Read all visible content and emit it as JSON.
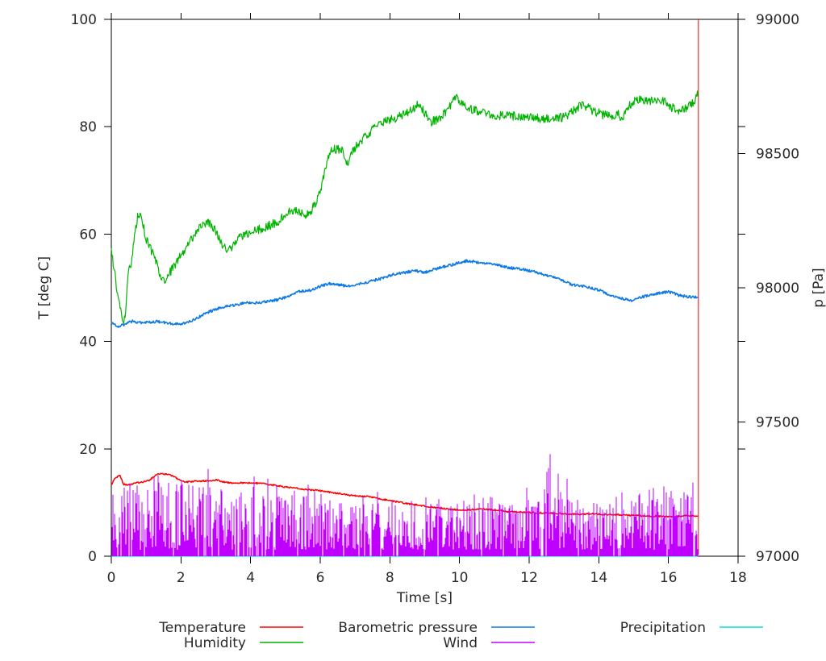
{
  "page": {
    "background": "#ffffff",
    "text_color": "#2a2a2a",
    "axis_color": "#000000"
  },
  "chart_data": {
    "type": "line",
    "title": "",
    "grid": false,
    "x_axis": {
      "label": "Time [s]",
      "min": 0,
      "max": 18,
      "tick_step": 2,
      "ticks": [
        0,
        2,
        4,
        6,
        8,
        10,
        12,
        14,
        16,
        18
      ]
    },
    "y_axis": {
      "label": "T [deg C]",
      "min": 0,
      "max": 100,
      "tick_step": 20,
      "ticks": [
        0,
        20,
        40,
        60,
        80,
        100
      ]
    },
    "y2_axis": {
      "label": "p [Pa]",
      "min": 97000,
      "max": 99000,
      "tick_step": 500,
      "ticks": [
        97000,
        97500,
        98000,
        98500,
        99000
      ]
    },
    "legend": {
      "position": "below",
      "entries": [
        {
          "label": "Temperature",
          "color": "#ff0000",
          "row": 0,
          "col": 0
        },
        {
          "label": "Humidity",
          "color": "#00b400",
          "row": 1,
          "col": 0
        },
        {
          "label": "Barometric pressure",
          "color": "#0e7ae4",
          "row": 0,
          "col": 1
        },
        {
          "label": "Wind",
          "color": "#bf00ff",
          "row": 1,
          "col": 1
        },
        {
          "label": "Precipitation",
          "color": "#00dde4",
          "row": 0,
          "col": 2
        }
      ]
    },
    "series": [
      {
        "name": "Precipitation",
        "axis": "y",
        "color": "#00dde4",
        "type": "line",
        "noise": 0,
        "width": 1.2,
        "points": [
          [
            0,
            0
          ],
          [
            16.86,
            0
          ]
        ]
      },
      {
        "name": "Temperature",
        "axis": "y",
        "color": "#ff0000",
        "type": "line",
        "noise": 0.14,
        "width": 1.5,
        "points": [
          [
            0,
            13.2
          ],
          [
            0.1,
            14.6
          ],
          [
            0.25,
            15.0
          ],
          [
            0.35,
            13.4
          ],
          [
            0.5,
            13.3
          ],
          [
            0.7,
            13.6
          ],
          [
            0.9,
            13.8
          ],
          [
            1.1,
            14.2
          ],
          [
            1.35,
            15.4
          ],
          [
            1.55,
            15.3
          ],
          [
            1.75,
            15.0
          ],
          [
            1.95,
            14.2
          ],
          [
            2.15,
            13.8
          ],
          [
            2.4,
            14.0
          ],
          [
            2.7,
            14.0
          ],
          [
            3.0,
            14.2
          ],
          [
            3.2,
            13.9
          ],
          [
            3.5,
            13.6
          ],
          [
            3.8,
            13.7
          ],
          [
            4.1,
            13.6
          ],
          [
            4.4,
            13.5
          ],
          [
            4.7,
            13.2
          ],
          [
            5.0,
            12.9
          ],
          [
            5.3,
            12.7
          ],
          [
            5.6,
            12.4
          ],
          [
            5.9,
            12.3
          ],
          [
            6.2,
            12.0
          ],
          [
            6.5,
            11.7
          ],
          [
            6.8,
            11.4
          ],
          [
            7.1,
            11.2
          ],
          [
            7.4,
            11.1
          ],
          [
            7.7,
            10.7
          ],
          [
            8.0,
            10.4
          ],
          [
            8.3,
            10.0
          ],
          [
            8.6,
            9.7
          ],
          [
            9.0,
            9.3
          ],
          [
            9.4,
            9.0
          ],
          [
            9.8,
            8.7
          ],
          [
            10.2,
            8.6
          ],
          [
            10.6,
            8.8
          ],
          [
            11.0,
            8.6
          ],
          [
            11.4,
            8.3
          ],
          [
            11.8,
            8.2
          ],
          [
            12.2,
            8.1
          ],
          [
            12.6,
            8.0
          ],
          [
            13.0,
            7.9
          ],
          [
            13.4,
            7.8
          ],
          [
            13.8,
            7.9
          ],
          [
            14.2,
            7.8
          ],
          [
            14.6,
            7.7
          ],
          [
            15.0,
            7.6
          ],
          [
            15.4,
            7.5
          ],
          [
            15.8,
            7.4
          ],
          [
            16.2,
            7.3
          ],
          [
            16.5,
            7.6
          ],
          [
            16.7,
            7.5
          ],
          [
            16.86,
            7.3
          ]
        ],
        "end_spike": {
          "t": 16.86,
          "from": 0.3,
          "to": 100
        }
      },
      {
        "name": "Humidity",
        "axis": "y",
        "color": "#00b400",
        "type": "line",
        "noise": 0.85,
        "width": 1.2,
        "points": [
          [
            0,
            57
          ],
          [
            0.08,
            53.5
          ],
          [
            0.2,
            48
          ],
          [
            0.3,
            44.5
          ],
          [
            0.38,
            44
          ],
          [
            0.5,
            53
          ],
          [
            0.58,
            55
          ],
          [
            0.68,
            60
          ],
          [
            0.78,
            64
          ],
          [
            0.9,
            62
          ],
          [
            1.0,
            59
          ],
          [
            1.15,
            57
          ],
          [
            1.3,
            54.5
          ],
          [
            1.45,
            51.5
          ],
          [
            1.55,
            51
          ],
          [
            1.7,
            53
          ],
          [
            1.85,
            54.5
          ],
          [
            2.0,
            56
          ],
          [
            2.2,
            58
          ],
          [
            2.4,
            60
          ],
          [
            2.6,
            62
          ],
          [
            2.8,
            62.2
          ],
          [
            3.0,
            60.5
          ],
          [
            3.2,
            58
          ],
          [
            3.35,
            57
          ],
          [
            3.5,
            58
          ],
          [
            3.7,
            59.5
          ],
          [
            3.9,
            60
          ],
          [
            4.1,
            60.5
          ],
          [
            4.3,
            61
          ],
          [
            4.5,
            61.5
          ],
          [
            4.7,
            62
          ],
          [
            4.9,
            63
          ],
          [
            5.1,
            64
          ],
          [
            5.25,
            64.5
          ],
          [
            5.4,
            64
          ],
          [
            5.55,
            63.5
          ],
          [
            5.7,
            64
          ],
          [
            5.85,
            65.5
          ],
          [
            6.0,
            68
          ],
          [
            6.15,
            72
          ],
          [
            6.3,
            75.5
          ],
          [
            6.5,
            76
          ],
          [
            6.65,
            75.5
          ],
          [
            6.75,
            72.8
          ],
          [
            6.9,
            75
          ],
          [
            7.1,
            77
          ],
          [
            7.35,
            78.5
          ],
          [
            7.6,
            80
          ],
          [
            7.85,
            81
          ],
          [
            8.1,
            81.5
          ],
          [
            8.35,
            82
          ],
          [
            8.6,
            83
          ],
          [
            8.8,
            84.3
          ],
          [
            9.0,
            82.5
          ],
          [
            9.15,
            80.8
          ],
          [
            9.35,
            81.3
          ],
          [
            9.6,
            82.5
          ],
          [
            9.9,
            85.4
          ],
          [
            10.1,
            84.5
          ],
          [
            10.35,
            83.2
          ],
          [
            10.6,
            82.7
          ],
          [
            10.9,
            82.2
          ],
          [
            11.2,
            82
          ],
          [
            11.6,
            82
          ],
          [
            12.0,
            81.8
          ],
          [
            12.4,
            81.5
          ],
          [
            12.8,
            81.6
          ],
          [
            13.1,
            82
          ],
          [
            13.4,
            83.5
          ],
          [
            13.55,
            84.2
          ],
          [
            13.8,
            83
          ],
          [
            14.1,
            82.3
          ],
          [
            14.35,
            82
          ],
          [
            14.55,
            82.5
          ],
          [
            14.65,
            81.3
          ],
          [
            14.8,
            83.5
          ],
          [
            15.0,
            84.8
          ],
          [
            15.3,
            85
          ],
          [
            15.6,
            84.8
          ],
          [
            15.9,
            84.6
          ],
          [
            16.1,
            83.6
          ],
          [
            16.3,
            82.8
          ],
          [
            16.5,
            83.4
          ],
          [
            16.7,
            84.3
          ],
          [
            16.86,
            86.3
          ]
        ]
      },
      {
        "name": "Barometric pressure",
        "axis": "y2",
        "color": "#0e7ae4",
        "type": "line",
        "noise": 5,
        "width": 1.6,
        "points": [
          [
            0,
            97870
          ],
          [
            0.2,
            97856
          ],
          [
            0.4,
            97864
          ],
          [
            0.6,
            97876
          ],
          [
            0.8,
            97870
          ],
          [
            1.0,
            97870
          ],
          [
            1.3,
            97874
          ],
          [
            1.6,
            97870
          ],
          [
            1.9,
            97864
          ],
          [
            2.2,
            97870
          ],
          [
            2.5,
            97890
          ],
          [
            2.8,
            97910
          ],
          [
            3.0,
            97920
          ],
          [
            3.3,
            97930
          ],
          [
            3.6,
            97936
          ],
          [
            3.9,
            97946
          ],
          [
            4.2,
            97944
          ],
          [
            4.5,
            97950
          ],
          [
            4.8,
            97956
          ],
          [
            5.1,
            97970
          ],
          [
            5.4,
            97986
          ],
          [
            5.7,
            97990
          ],
          [
            6.0,
            98006
          ],
          [
            6.3,
            98016
          ],
          [
            6.6,
            98010
          ],
          [
            6.9,
            98004
          ],
          [
            7.2,
            98016
          ],
          [
            7.5,
            98026
          ],
          [
            7.8,
            98036
          ],
          [
            8.1,
            98050
          ],
          [
            8.4,
            98056
          ],
          [
            8.7,
            98064
          ],
          [
            9.0,
            98056
          ],
          [
            9.3,
            98070
          ],
          [
            9.6,
            98080
          ],
          [
            9.9,
            98090
          ],
          [
            10.2,
            98100
          ],
          [
            10.5,
            98096
          ],
          [
            10.8,
            98090
          ],
          [
            11.1,
            98084
          ],
          [
            11.4,
            98076
          ],
          [
            11.7,
            98070
          ],
          [
            12.0,
            98064
          ],
          [
            12.4,
            98050
          ],
          [
            12.8,
            98036
          ],
          [
            13.2,
            98012
          ],
          [
            13.6,
            98004
          ],
          [
            14.0,
            97992
          ],
          [
            14.4,
            97968
          ],
          [
            14.9,
            97952
          ],
          [
            15.4,
            97972
          ],
          [
            16.0,
            97986
          ],
          [
            16.3,
            97972
          ],
          [
            16.6,
            97966
          ],
          [
            16.86,
            97964
          ]
        ]
      },
      {
        "name": "Wind",
        "axis": "y",
        "color": "#bf00ff",
        "type": "spikes",
        "width": 1,
        "t_end": 16.86,
        "band_envelope": [
          [
            0,
            13
          ],
          [
            1,
            13.5
          ],
          [
            2,
            14
          ],
          [
            3,
            13
          ],
          [
            4,
            13
          ],
          [
            5,
            13
          ],
          [
            5.5,
            11
          ],
          [
            6,
            10.5
          ],
          [
            7,
            10
          ],
          [
            8,
            10
          ],
          [
            9,
            10.5
          ],
          [
            10,
            10
          ],
          [
            11,
            10
          ],
          [
            12,
            11
          ],
          [
            13,
            11
          ],
          [
            14,
            10
          ],
          [
            15,
            11
          ],
          [
            16,
            11
          ],
          [
            16.86,
            12
          ]
        ],
        "spike_envelope": [
          [
            0,
            14
          ],
          [
            1,
            14
          ],
          [
            2,
            15
          ],
          [
            3,
            17
          ],
          [
            3.05,
            24
          ],
          [
            3.3,
            15
          ],
          [
            3.8,
            20
          ],
          [
            4.05,
            22
          ],
          [
            4.3,
            20
          ],
          [
            4.6,
            15
          ],
          [
            4.95,
            21
          ],
          [
            5.2,
            14
          ],
          [
            6,
            13
          ],
          [
            7,
            12
          ],
          [
            8.8,
            13
          ],
          [
            9.6,
            14
          ],
          [
            10,
            12
          ],
          [
            11.5,
            12
          ],
          [
            12.4,
            15
          ],
          [
            12.65,
            20
          ],
          [
            12.9,
            18
          ],
          [
            13.2,
            17
          ],
          [
            13.6,
            14
          ],
          [
            14.2,
            13
          ],
          [
            14.8,
            15
          ],
          [
            15.1,
            18
          ],
          [
            15.45,
            17
          ],
          [
            15.8,
            14
          ],
          [
            16.2,
            13
          ],
          [
            16.6,
            14
          ],
          [
            16.86,
            16
          ]
        ]
      }
    ]
  }
}
